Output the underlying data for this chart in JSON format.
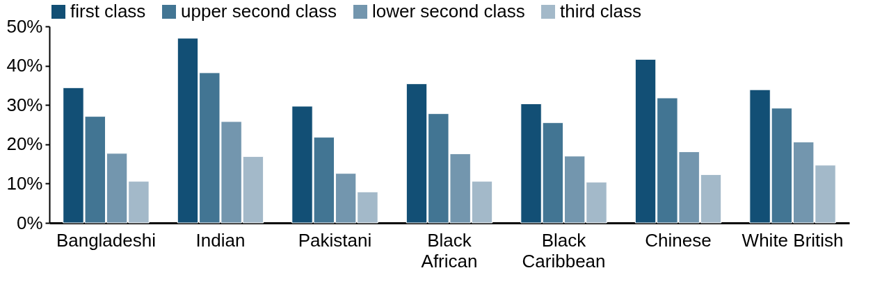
{
  "chart_data": {
    "type": "bar",
    "categories": [
      "Bangladeshi",
      "Indian",
      "Pakistani",
      "Black\nAfrican",
      "Black\nCaribbean",
      "Chinese",
      "White British"
    ],
    "series": [
      {
        "name": "first class",
        "color": "#124f75",
        "values": [
          34.4,
          47.0,
          29.7,
          35.4,
          30.3,
          41.6,
          33.9
        ]
      },
      {
        "name": "upper second class",
        "color": "#427593",
        "values": [
          27.1,
          38.2,
          21.8,
          27.8,
          25.5,
          31.8,
          29.2
        ]
      },
      {
        "name": "lower second class",
        "color": "#7396ae",
        "values": [
          17.7,
          25.8,
          12.6,
          17.6,
          17.0,
          18.1,
          20.6
        ]
      },
      {
        "name": "third class",
        "color": "#a3b9c9",
        "values": [
          10.6,
          16.9,
          7.9,
          10.6,
          10.4,
          12.3,
          14.7
        ]
      }
    ],
    "ylim": [
      0,
      50
    ],
    "yticks": [
      {
        "value": 0,
        "label": "0%"
      },
      {
        "value": 10,
        "label": "10%"
      },
      {
        "value": 20,
        "label": "20%"
      },
      {
        "value": 30,
        "label": "30%"
      },
      {
        "value": 40,
        "label": "40%"
      },
      {
        "value": 50,
        "label": "50%"
      }
    ],
    "grid": false,
    "legend": "top"
  }
}
